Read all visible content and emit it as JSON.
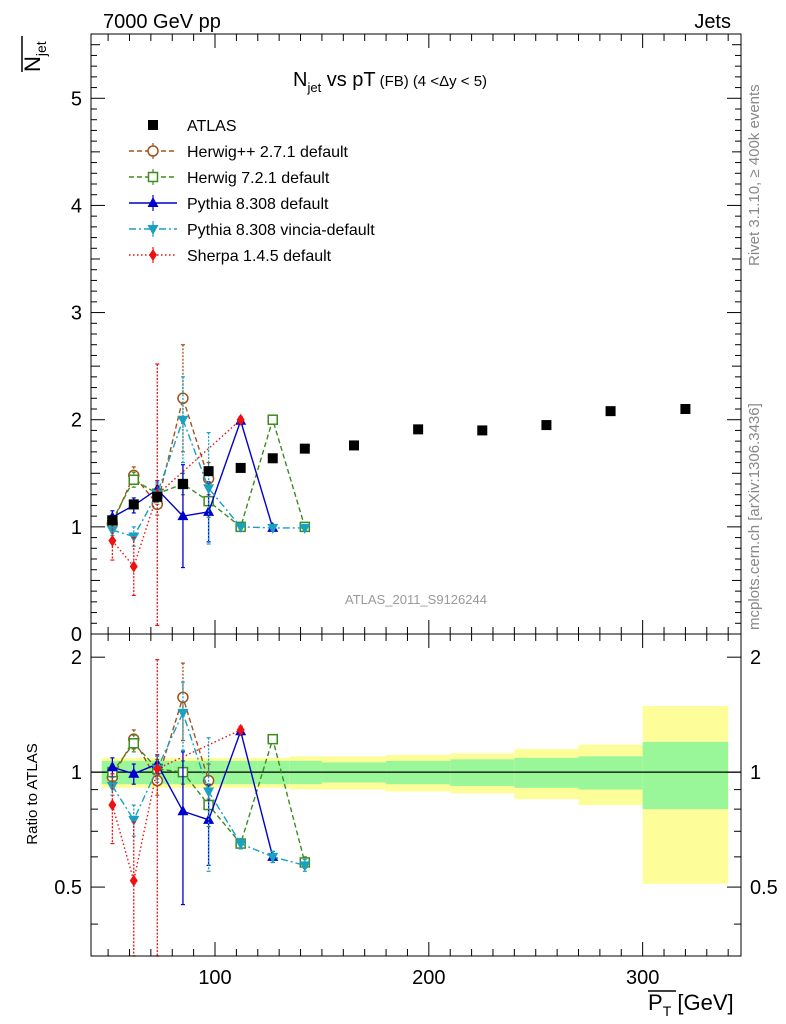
{
  "header": {
    "left_label": "7000 GeV pp",
    "right_label": "Jets"
  },
  "side_labels": {
    "rivet": "Rivet 3.1.10, ≥ 400k events",
    "mcplots": "mcplots.cern.ch [arXiv:1306.3436]"
  },
  "colors": {
    "atlas": "#000000",
    "herwigpp": "#a0521c",
    "herwig7": "#3c8c1e",
    "pythia": "#0000cc",
    "vincia": "#1aa0c0",
    "sherpa": "#ee1111",
    "band_inner": "#99f799",
    "band_outer": "#fdfd9a"
  },
  "chart_data": [
    {
      "type": "scatter",
      "panel": "main",
      "title": "N_jet vs pT (FB) (4 < Δy < 5)",
      "title_parts": {
        "main": "N",
        "sub": "jet",
        "rest": " vs pT",
        "paren": "(FB)",
        "range": "(4 <Δy < 5)"
      },
      "ylabel": "N_jet",
      "ylabel_parts": {
        "main": "N",
        "sub": "jet"
      },
      "watermark": "ATLAS_2011_S9126244",
      "xlim": [
        42,
        346
      ],
      "ylim": [
        0,
        5.6
      ],
      "yticks": [
        0,
        1,
        2,
        3,
        4,
        5
      ],
      "legend_position": "top-left",
      "series": [
        {
          "name": "ATLAS",
          "key": "atlas",
          "marker": "square",
          "line": "none",
          "x": [
            52,
            62,
            73,
            85,
            97,
            112,
            127,
            142,
            165,
            195,
            225,
            255,
            285,
            320
          ],
          "y": [
            1.06,
            1.21,
            1.28,
            1.4,
            1.52,
            1.55,
            1.64,
            1.73,
            1.76,
            1.91,
            1.9,
            1.95,
            2.08,
            2.1
          ],
          "err": [
            0.03,
            0.03,
            0.03,
            0.03,
            0.03,
            0.03,
            0.03,
            0.03,
            0.03,
            0.03,
            0.03,
            0.03,
            0.03,
            0.03
          ]
        },
        {
          "name": "Herwig++ 2.7.1 default",
          "key": "herwigpp",
          "marker": "open-circle",
          "line": "dashed",
          "x": [
            52,
            62,
            73,
            85,
            97
          ],
          "y": [
            1.03,
            1.48,
            1.21,
            2.2,
            1.45
          ],
          "err": [
            0.06,
            0.08,
            0.1,
            0.5,
            0.15
          ]
        },
        {
          "name": "Herwig 7.2.1 default",
          "key": "herwig7",
          "marker": "open-square",
          "line": "dashed",
          "x": [
            52,
            62,
            73,
            85,
            97,
            112,
            127,
            142
          ],
          "y": [
            1.06,
            1.44,
            1.31,
            1.4,
            1.24,
            1.0,
            2.0,
            1.0
          ],
          "err": [
            0.05,
            0.07,
            0.08,
            0.1,
            0.15,
            0.02,
            0.03,
            0.02
          ]
        },
        {
          "name": "Pythia 8.308 default",
          "key": "pythia",
          "marker": "triangle-up",
          "line": "solid",
          "x": [
            52,
            62,
            73,
            85,
            97,
            112,
            127
          ],
          "y": [
            1.09,
            1.2,
            1.35,
            1.1,
            1.14,
            1.99,
            0.99
          ],
          "err": [
            0.06,
            0.07,
            0.08,
            0.48,
            0.28,
            0.03,
            0.02
          ]
        },
        {
          "name": "Pythia 8.308 vincia-default",
          "key": "vincia",
          "marker": "triangle-down",
          "line": "dashdot",
          "x": [
            52,
            62,
            73,
            85,
            97,
            112,
            127,
            142
          ],
          "y": [
            0.97,
            0.91,
            1.31,
            2.0,
            1.36,
            1.0,
            0.99,
            0.99
          ],
          "err": [
            0.05,
            0.09,
            0.1,
            0.4,
            0.52,
            0.02,
            0.02,
            0.02
          ]
        },
        {
          "name": "Sherpa 1.4.5 default",
          "key": "sherpa",
          "marker": "diamond",
          "line": "dotted",
          "x": [
            52,
            62,
            73,
            112
          ],
          "y": [
            0.87,
            0.63,
            1.3,
            2.0
          ],
          "err": [
            0.18,
            0.27,
            1.22,
            0.03
          ]
        }
      ]
    },
    {
      "type": "scatter",
      "panel": "ratio",
      "ylabel": "Ratio to ATLAS",
      "xlabel": "P_T [GeV]",
      "xlabel_parts": {
        "main": "P",
        "sub": "T",
        "unit": " [GeV]"
      },
      "xlim": [
        42,
        346
      ],
      "ylim": [
        0.33,
        2.3
      ],
      "yticks": [
        0.5,
        1,
        2
      ],
      "ytick_labels": [
        "0.5",
        "1",
        "2"
      ],
      "xticks": [
        100,
        200,
        300
      ],
      "xtick_labels": [
        "100",
        "200",
        "300"
      ],
      "reference_line": 1,
      "bands": {
        "edges": [
          47,
          57,
          67,
          80,
          90,
          105,
          120,
          135,
          150,
          180,
          210,
          240,
          270,
          300,
          340
        ],
        "inner": [
          0.07,
          0.07,
          0.07,
          0.07,
          0.07,
          0.07,
          0.07,
          0.07,
          0.06,
          0.07,
          0.08,
          0.09,
          0.1,
          0.2
        ],
        "outer": [
          0.09,
          0.09,
          0.09,
          0.09,
          0.09,
          0.09,
          0.09,
          0.1,
          0.1,
          0.11,
          0.12,
          0.15,
          0.18,
          0.49
        ]
      },
      "series": [
        {
          "name": "Herwig++ 2.7.1 default",
          "key": "herwigpp",
          "marker": "open-circle",
          "line": "dashed",
          "x": [
            52,
            62,
            73,
            85,
            97
          ],
          "y": [
            0.97,
            1.22,
            0.95,
            1.57,
            0.95
          ],
          "err": [
            0.06,
            0.07,
            0.08,
            0.36,
            0.1
          ]
        },
        {
          "name": "Herwig 7.2.1 default",
          "key": "herwig7",
          "marker": "open-square",
          "line": "dashed",
          "x": [
            52,
            62,
            73,
            85,
            97,
            112,
            127,
            142
          ],
          "y": [
            1.0,
            1.19,
            1.02,
            1.0,
            0.82,
            0.65,
            1.22,
            0.58
          ],
          "err": [
            0.05,
            0.06,
            0.06,
            0.07,
            0.1,
            0.02,
            0.03,
            0.02
          ]
        },
        {
          "name": "Pythia 8.308 default",
          "key": "pythia",
          "marker": "triangle-up",
          "line": "solid",
          "x": [
            52,
            62,
            73,
            85,
            97,
            112,
            127
          ],
          "y": [
            1.03,
            0.99,
            1.05,
            0.79,
            0.75,
            1.28,
            0.6
          ],
          "err": [
            0.06,
            0.06,
            0.06,
            0.34,
            0.18,
            0.03,
            0.02
          ]
        },
        {
          "name": "Pythia 8.308 vincia-default",
          "key": "vincia",
          "marker": "triangle-down",
          "line": "dashdot",
          "x": [
            52,
            62,
            73,
            85,
            97,
            112,
            127,
            142
          ],
          "y": [
            0.92,
            0.75,
            1.02,
            1.43,
            0.89,
            0.65,
            0.6,
            0.57
          ],
          "err": [
            0.05,
            0.07,
            0.08,
            0.29,
            0.34,
            0.02,
            0.02,
            0.02
          ]
        },
        {
          "name": "Sherpa 1.4.5 default",
          "key": "sherpa",
          "marker": "diamond",
          "line": "dotted",
          "x": [
            52,
            62,
            73,
            112
          ],
          "y": [
            0.82,
            0.52,
            1.02,
            1.29
          ],
          "err": [
            0.17,
            0.22,
            0.95,
            0.03
          ]
        }
      ]
    }
  ]
}
